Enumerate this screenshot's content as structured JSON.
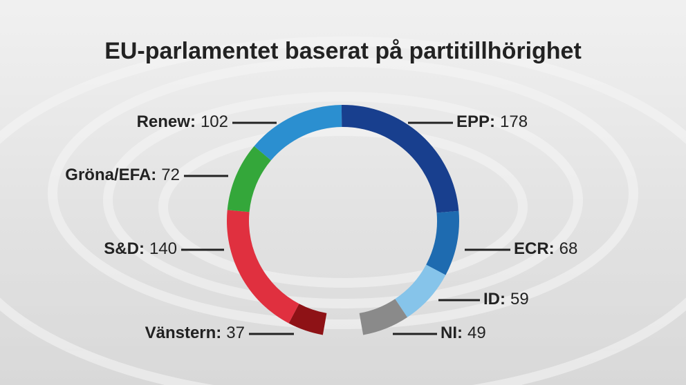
{
  "chart_data": {
    "type": "donut",
    "title": "EU-parlamentet baserat på partitillhörighet",
    "categories": [
      "Vänstern:",
      "S&D:",
      "Gröna/EFA:",
      "Renew:",
      "EPP:",
      "ECR:",
      "ID:",
      "NI:"
    ],
    "values": [
      37,
      140,
      72,
      102,
      178,
      68,
      59,
      49
    ],
    "colors": [
      "#8e1216",
      "#e0303f",
      "#34a73a",
      "#2b8fd0",
      "#183f8e",
      "#1e6bb0",
      "#86c4ea",
      "#8a8a8a"
    ]
  }
}
